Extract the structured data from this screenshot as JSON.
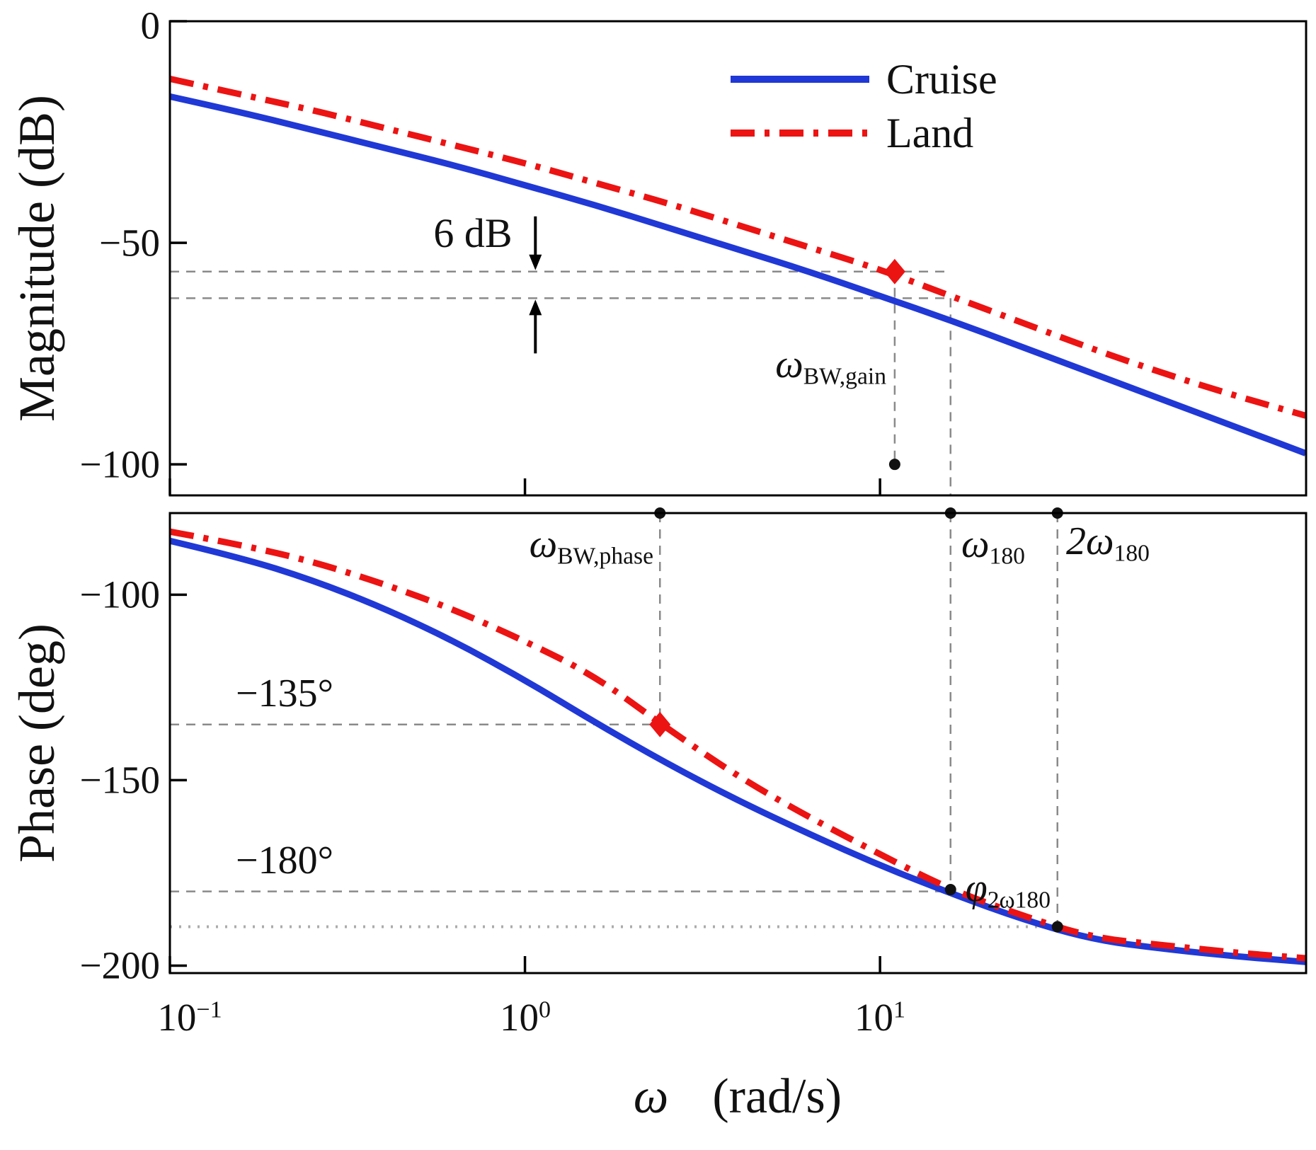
{
  "chart_data": {
    "type": "line",
    "title": "",
    "x_scale": "log",
    "x_range": [
      0.1,
      158
    ],
    "xlabel": {
      "symbol": "ω",
      "units": "(rad/s)"
    },
    "x": [
      0.1,
      0.158,
      0.251,
      0.398,
      0.631,
      1,
      1.58,
      2.51,
      3.98,
      6.31,
      10,
      15.8,
      25.1,
      39.8,
      63.1,
      100,
      158
    ],
    "xticks": [
      {
        "freq": 0.1,
        "base": "10",
        "exp": "−1"
      },
      {
        "freq": 1,
        "base": "10",
        "exp": "0"
      },
      {
        "freq": 10,
        "base": "10",
        "exp": "1"
      }
    ],
    "legend": {
      "position": "top-right",
      "entries": [
        {
          "label": "Cruise",
          "color": "#2038d5",
          "dash": "solid"
        },
        {
          "label": "Land",
          "color": "#ec1313",
          "dash": "dashdot"
        }
      ]
    },
    "guide_color": "#8a8a8a",
    "panels": [
      {
        "id": "magnitude",
        "ylabel": "Magnitude (dB)",
        "ylim": [
          -107,
          0
        ],
        "yticks": [
          {
            "v": 0,
            "label": "0"
          },
          {
            "v": -50,
            "label": "−50"
          },
          {
            "v": -100,
            "label": "−100"
          }
        ],
        "series": [
          {
            "name": "Cruise",
            "color": "#2038d5",
            "dash": "solid",
            "y": [
              -17,
              -20.5,
              -24.5,
              -28.5,
              -32.5,
              -37,
              -41.5,
              -46.5,
              -51.5,
              -56.5,
              -62,
              -67.5,
              -73.5,
              -79.5,
              -85.5,
              -91.5,
              -97.5
            ]
          },
          {
            "name": "Land",
            "color": "#ec1313",
            "dash": "dashdot",
            "y": [
              -13,
              -16.5,
              -20,
              -24,
              -28,
              -32,
              -36.5,
              -41,
              -46,
              -51,
              -56,
              -62,
              -68,
              -74,
              -79.5,
              -84.5,
              -89
            ]
          }
        ],
        "hlines": [
          {
            "y": -56.5,
            "to_freq": 15.8
          },
          {
            "y": -62.5,
            "to_freq": 15.8
          }
        ],
        "vlines": [
          {
            "freq": 11,
            "from": -56.5,
            "to": -100,
            "dot_at": -100
          },
          {
            "freq": 15.8,
            "from": -62.5,
            "to": "bottom"
          }
        ],
        "markers": [
          {
            "freq": 11,
            "y": -56.5,
            "shape": "diamond",
            "color": "#ec1313"
          }
        ],
        "dim_arrow": {
          "freq": 1.07,
          "upper": -56.5,
          "lower": -62.5
        }
      },
      {
        "id": "phase",
        "ylabel": "Phase (deg)",
        "ylim": [
          -202,
          -78
        ],
        "yticks": [
          {
            "v": -100,
            "label": "−100"
          },
          {
            "v": -150,
            "label": "−150"
          },
          {
            "v": -200,
            "label": "−200"
          }
        ],
        "series": [
          {
            "name": "Cruise",
            "color": "#2038d5",
            "dash": "solid",
            "y": [
              -85.5,
              -90,
              -96,
              -103.5,
              -112.5,
              -123,
              -134.5,
              -145.5,
              -155.5,
              -164.5,
              -173,
              -180.5,
              -187.5,
              -193,
              -195.5,
              -197.5,
              -199
            ]
          },
          {
            "name": "Land",
            "color": "#ec1313",
            "dash": "dashdot",
            "y": [
              -83,
              -86.5,
              -91,
              -97,
              -104,
              -112.5,
              -122,
              -136,
              -149,
              -160,
              -170,
              -179.5,
              -186.5,
              -192.5,
              -194.5,
              -196.5,
              -198
            ]
          }
        ],
        "hlines": [
          {
            "y": -135,
            "to_freq": 2.4
          },
          {
            "y": -180,
            "to_freq": 15.8
          },
          {
            "y": -189.5,
            "to_freq": 31.6,
            "style": "dotted",
            "color": "#ababab",
            "width": 4
          }
        ],
        "vlines": [
          {
            "freq": 2.4,
            "from": "top",
            "to": -135,
            "top_dot": true
          },
          {
            "freq": 15.8,
            "from": "top",
            "to": -179.5,
            "top_dot": true,
            "dot_at": -179.5
          },
          {
            "freq": 31.6,
            "from": "top",
            "to": -189.5,
            "top_dot": true,
            "dot_at": -189.5
          }
        ],
        "markers": [
          {
            "freq": 2.4,
            "y": -135,
            "shape": "diamond",
            "color": "#ec1313"
          }
        ]
      }
    ],
    "annotations": {
      "gain_delta": "6 dB",
      "omega_bw_gain": {
        "main": "ω",
        "sub": "BW,gain"
      },
      "omega_bw_phase": {
        "main": "ω",
        "sub": "BW,phase"
      },
      "omega_180": {
        "main": "ω",
        "sub": "180"
      },
      "two_omega_180": {
        "main": "2ω",
        "sub": "180"
      },
      "phi_2omega_180": {
        "main": "φ",
        "sub": "2ω180"
      },
      "phase_135_label": "−135°",
      "phase_180_label": "−180°",
      "key_frequencies": {
        "omega_bw_phase": 2.4,
        "omega_bw_gain": 11,
        "omega_180": 15.8,
        "two_omega_180": 31.6
      }
    }
  }
}
